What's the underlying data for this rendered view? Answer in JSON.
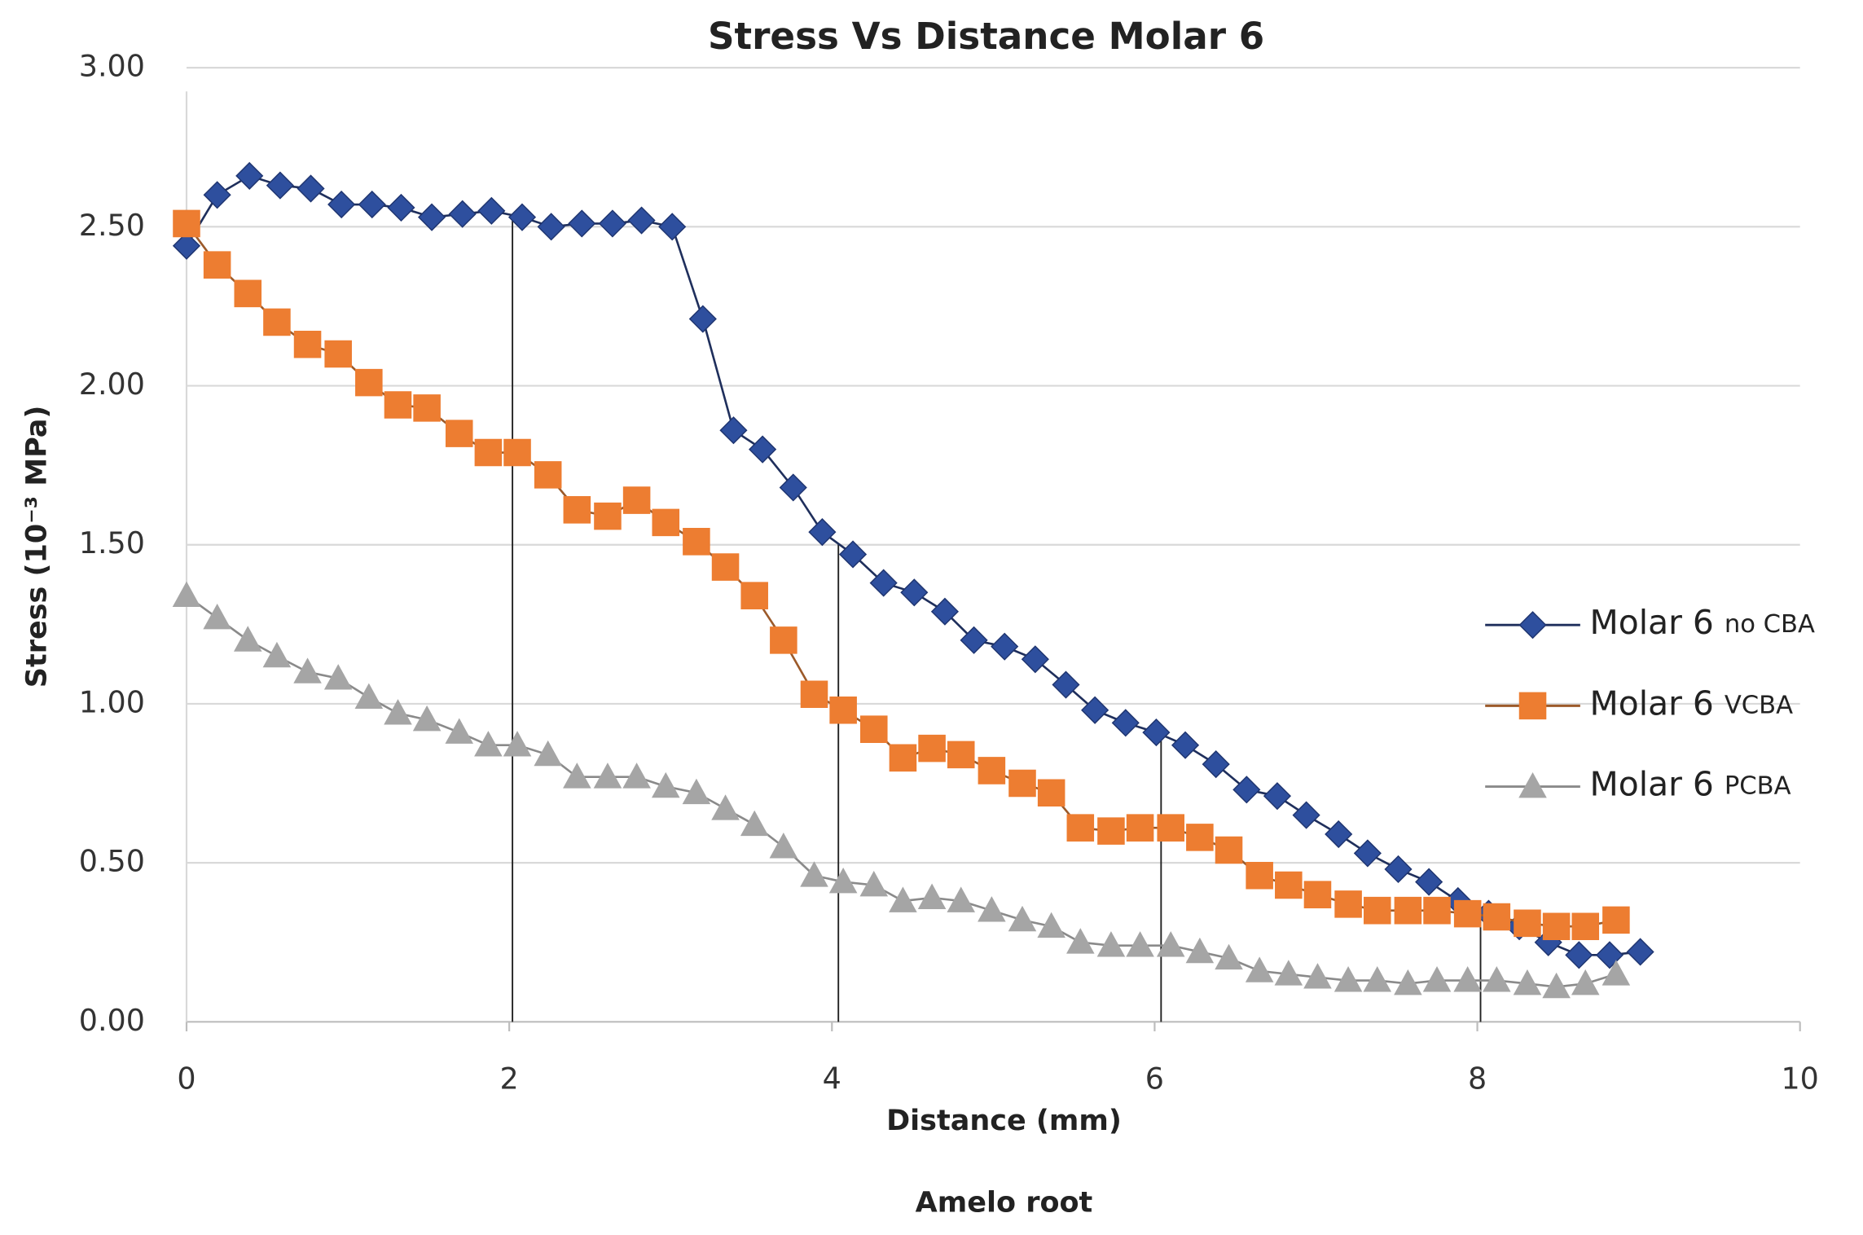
{
  "chart_data": {
    "type": "line",
    "title": "Stress Vs Distance  Molar 6",
    "x_label": "Distance (mm)",
    "y_label": "Stress (10⁻³ MPa)",
    "annotation": "Amelo root",
    "xlim": [
      0,
      10
    ],
    "xticks": [
      0,
      2,
      4,
      6,
      8,
      10
    ],
    "ylim": [
      0,
      3
    ],
    "yticks": [
      {
        "value": 0,
        "label": "0.00"
      },
      {
        "value": 0.5,
        "label": "0.50"
      },
      {
        "value": 1,
        "label": "1.00"
      },
      {
        "value": 1.5,
        "label": "1.50"
      },
      {
        "value": 2,
        "label": "2.00"
      },
      {
        "value": 2.5,
        "label": "2.50"
      },
      {
        "value": 3,
        "label": "3.00"
      }
    ],
    "grid": true,
    "legend": "right",
    "vlines": [
      2.02,
      4.04,
      6.04,
      8.02
    ],
    "series": [
      {
        "name": "Molar 6 no CBA",
        "color": "#2e4f9e",
        "line_color": "#1f2f5c",
        "marker": "diamond",
        "x": [
          0,
          0.19,
          0.39,
          0.58,
          0.77,
          0.96,
          1.15,
          1.33,
          1.52,
          1.71,
          1.89,
          2.08,
          2.26,
          2.45,
          2.64,
          2.82,
          3.01,
          3.2,
          3.39,
          3.57,
          3.76,
          3.94,
          4.13,
          4.32,
          4.51,
          4.7,
          4.88,
          5.07,
          5.26,
          5.45,
          5.63,
          5.82,
          6.01,
          6.19,
          6.38,
          6.57,
          6.76,
          6.94,
          7.14,
          7.32,
          7.51,
          7.7,
          7.88,
          8.07,
          8.26,
          8.44,
          8.63,
          8.82,
          9.01
        ],
        "values": [
          2.44,
          2.6,
          2.66,
          2.63,
          2.62,
          2.57,
          2.57,
          2.56,
          2.53,
          2.54,
          2.55,
          2.53,
          2.5,
          2.51,
          2.51,
          2.52,
          2.5,
          2.21,
          1.86,
          1.8,
          1.68,
          1.54,
          1.47,
          1.38,
          1.35,
          1.29,
          1.2,
          1.18,
          1.14,
          1.06,
          0.98,
          0.94,
          0.91,
          0.87,
          0.81,
          0.73,
          0.71,
          0.65,
          0.59,
          0.53,
          0.48,
          0.44,
          0.38,
          0.34,
          0.3,
          0.25,
          0.21,
          0.21,
          0.22
        ]
      },
      {
        "name": "Molar 6 VCBA",
        "color": "#ed7d31",
        "line_color": "#9c5a2a",
        "marker": "square",
        "x": [
          0,
          0.19,
          0.38,
          0.56,
          0.75,
          0.94,
          1.13,
          1.31,
          1.49,
          1.69,
          1.87,
          2.05,
          2.24,
          2.42,
          2.61,
          2.79,
          2.97,
          3.16,
          3.34,
          3.52,
          3.7,
          3.89,
          4.07,
          4.26,
          4.44,
          4.62,
          4.8,
          4.99,
          5.18,
          5.36,
          5.54,
          5.73,
          5.91,
          6.1,
          6.28,
          6.46,
          6.65,
          6.83,
          7.01,
          7.2,
          7.38,
          7.57,
          7.75,
          7.94,
          8.12,
          8.31,
          8.49,
          8.67,
          8.86
        ],
        "values": [
          2.51,
          2.38,
          2.29,
          2.2,
          2.13,
          2.1,
          2.01,
          1.94,
          1.93,
          1.85,
          1.79,
          1.79,
          1.72,
          1.61,
          1.59,
          1.64,
          1.57,
          1.51,
          1.43,
          1.34,
          1.2,
          1.03,
          0.98,
          0.92,
          0.83,
          0.86,
          0.84,
          0.79,
          0.75,
          0.72,
          0.61,
          0.6,
          0.61,
          0.61,
          0.58,
          0.54,
          0.46,
          0.43,
          0.4,
          0.37,
          0.35,
          0.35,
          0.35,
          0.34,
          0.33,
          0.31,
          0.3,
          0.3,
          0.32
        ]
      },
      {
        "name": "Molar 6 PCBA",
        "color": "#a5a5a5",
        "line_color": "#8a8a8a",
        "marker": "triangle",
        "x": [
          0,
          0.19,
          0.38,
          0.56,
          0.75,
          0.94,
          1.13,
          1.31,
          1.49,
          1.69,
          1.87,
          2.05,
          2.24,
          2.42,
          2.61,
          2.79,
          2.97,
          3.16,
          3.34,
          3.52,
          3.7,
          3.89,
          4.07,
          4.26,
          4.44,
          4.62,
          4.8,
          4.99,
          5.18,
          5.36,
          5.54,
          5.73,
          5.91,
          6.1,
          6.28,
          6.46,
          6.65,
          6.83,
          7.01,
          7.2,
          7.38,
          7.57,
          7.75,
          7.94,
          8.12,
          8.31,
          8.49,
          8.67,
          8.86
        ],
        "values": [
          1.34,
          1.27,
          1.2,
          1.15,
          1.1,
          1.08,
          1.02,
          0.97,
          0.95,
          0.91,
          0.87,
          0.87,
          0.84,
          0.77,
          0.77,
          0.77,
          0.74,
          0.72,
          0.67,
          0.62,
          0.55,
          0.46,
          0.44,
          0.43,
          0.38,
          0.39,
          0.38,
          0.35,
          0.32,
          0.3,
          0.25,
          0.24,
          0.24,
          0.24,
          0.22,
          0.2,
          0.16,
          0.15,
          0.14,
          0.13,
          0.13,
          0.12,
          0.13,
          0.13,
          0.13,
          0.12,
          0.11,
          0.12,
          0.15
        ]
      }
    ]
  }
}
